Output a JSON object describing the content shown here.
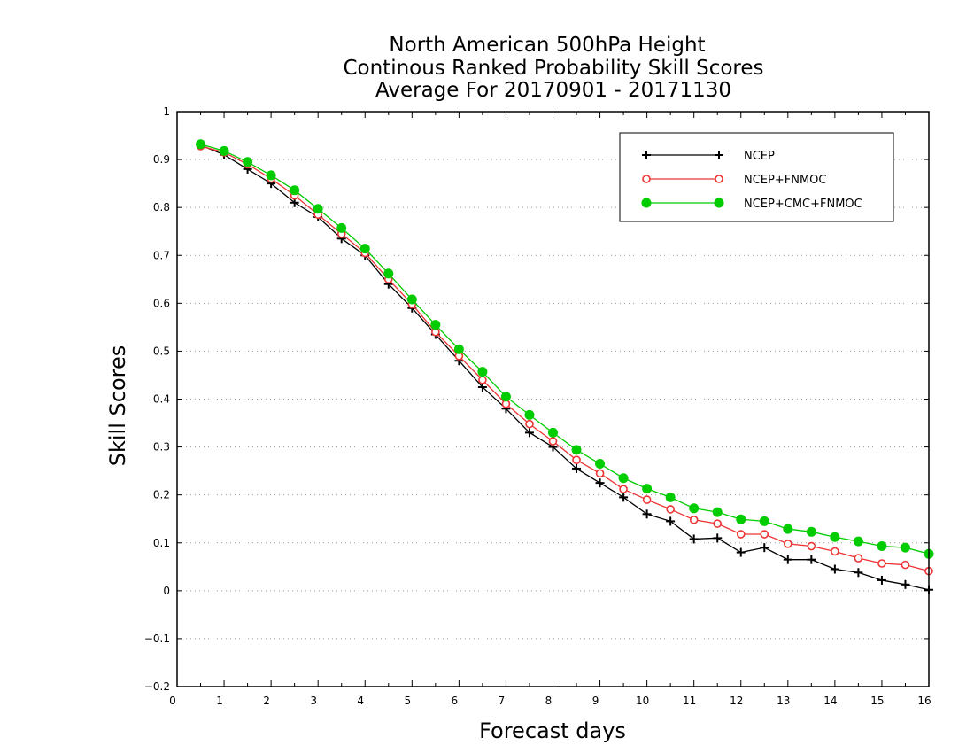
{
  "chart_data": {
    "type": "line",
    "title_lines": [
      "North American 500hPa Height",
      "Continous Ranked Probability Skill Scores",
      "Average For 20170901 - 20171130"
    ],
    "xlabel": "Forecast days",
    "ylabel": "Skill Scores",
    "xlim": [
      0,
      16
    ],
    "ylim": [
      -0.2,
      1
    ],
    "xticks": [
      "0",
      "1",
      "2",
      "3",
      "4",
      "5",
      "6",
      "7",
      "8",
      "9",
      "10",
      "11",
      "12",
      "13",
      "14",
      "15",
      "16"
    ],
    "yticks": [
      "-0.2",
      "-0.1",
      "0",
      "0.1",
      "0.2",
      "0.3",
      "0.4",
      "0.5",
      "0.6",
      "0.7",
      "0.8",
      "0.9",
      "1"
    ],
    "grid": "dotted horizontal",
    "legend_position": "top-right",
    "x": [
      0.5,
      1,
      1.5,
      2,
      2.5,
      3,
      3.5,
      4,
      4.5,
      5,
      5.5,
      6,
      6.5,
      7,
      7.5,
      8,
      8.5,
      9,
      9.5,
      10,
      10.5,
      11,
      11.5,
      12,
      12.5,
      13,
      13.5,
      14,
      14.5,
      15,
      15.5,
      16
    ],
    "series": [
      {
        "name": "NCEP",
        "color": "#000000",
        "marker": "plus",
        "values": [
          0.93,
          0.91,
          0.88,
          0.85,
          0.81,
          0.78,
          0.735,
          0.7,
          0.64,
          0.59,
          0.535,
          0.48,
          0.425,
          0.38,
          0.33,
          0.3,
          0.255,
          0.225,
          0.195,
          0.16,
          0.145,
          0.108,
          0.11,
          0.08,
          0.09,
          0.065,
          0.065,
          0.045,
          0.038,
          0.022,
          0.013,
          0.002
        ]
      },
      {
        "name": "NCEP+FNMOC",
        "color": "#ee3333",
        "marker": "open-circle",
        "values": [
          0.928,
          0.915,
          0.89,
          0.86,
          0.825,
          0.785,
          0.745,
          0.705,
          0.65,
          0.598,
          0.54,
          0.49,
          0.44,
          0.39,
          0.348,
          0.312,
          0.273,
          0.245,
          0.212,
          0.19,
          0.17,
          0.148,
          0.14,
          0.118,
          0.118,
          0.098,
          0.093,
          0.082,
          0.068,
          0.057,
          0.054,
          0.041
        ]
      },
      {
        "name": "NCEP+CMC+FNMOC",
        "color": "#00cc00",
        "marker": "filled-circle",
        "values": [
          0.932,
          0.918,
          0.895,
          0.867,
          0.836,
          0.797,
          0.757,
          0.714,
          0.662,
          0.608,
          0.555,
          0.504,
          0.457,
          0.405,
          0.367,
          0.33,
          0.294,
          0.265,
          0.235,
          0.213,
          0.195,
          0.172,
          0.164,
          0.149,
          0.145,
          0.129,
          0.123,
          0.112,
          0.103,
          0.093,
          0.09,
          0.077
        ]
      }
    ]
  }
}
